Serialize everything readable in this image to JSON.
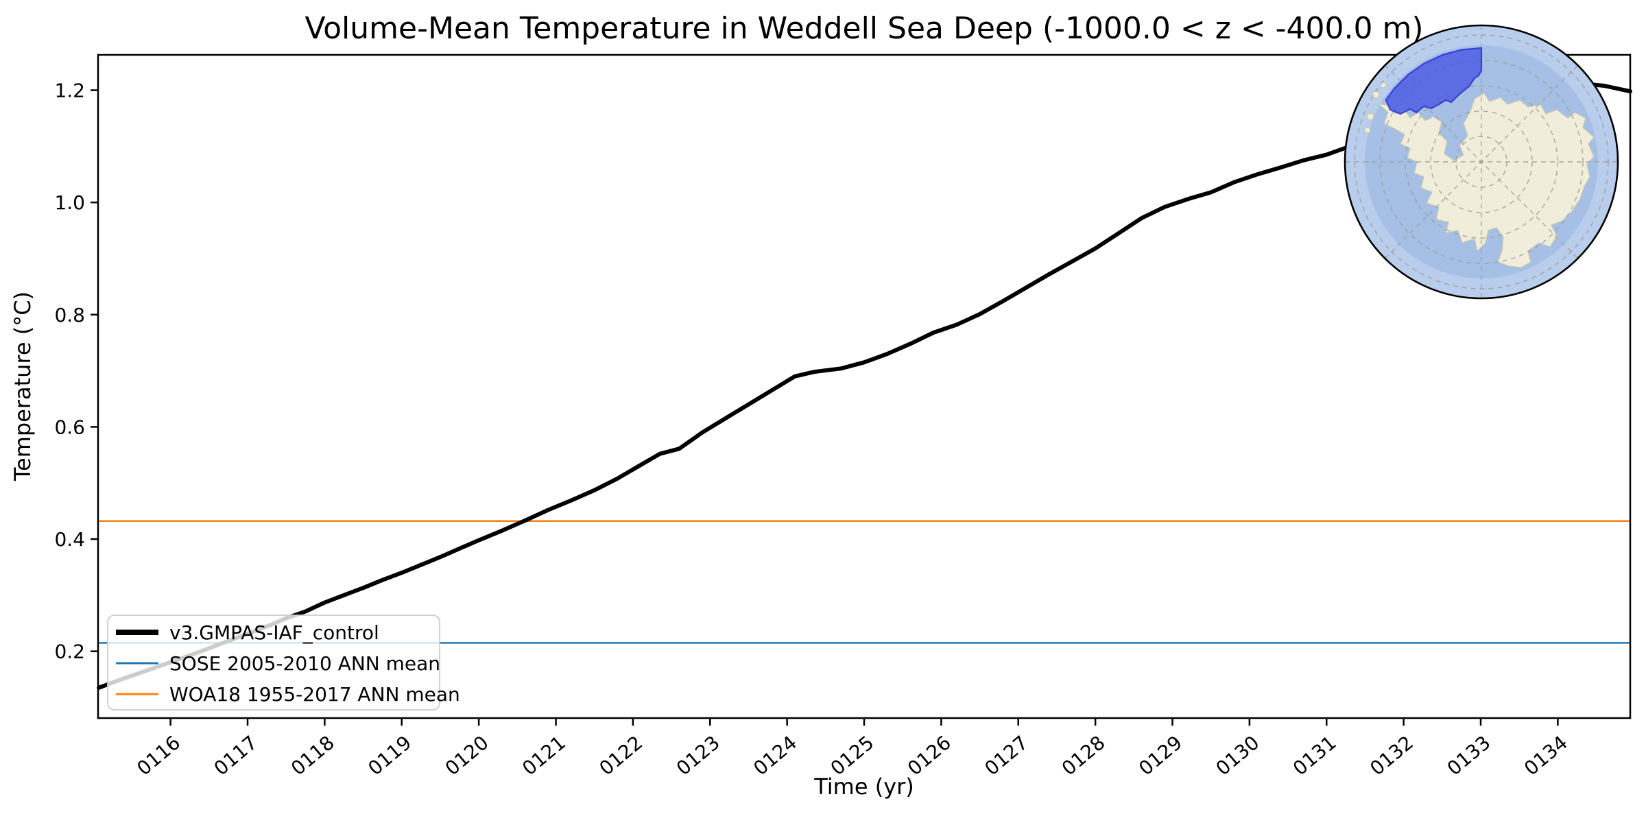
{
  "title": "Volume-Mean Temperature in Weddell Sea Deep (-1000.0 < z < -400.0 m)",
  "axes": {
    "xlabel": "Time (yr)",
    "ylabel": "Temperature (°C)"
  },
  "legend": {
    "position": "lower left"
  },
  "colors": {
    "series-black": "#000000",
    "sose-blue": "#1f77b4",
    "woa-orange": "#ff7f0e",
    "ocean-outer": "#b9cdec",
    "ocean-inner": "#a6c0e5",
    "land": "#f0eedb",
    "land-edge": "#c9c5b0",
    "region-fill": "#4855e2",
    "region-edge": "#3a3fd8",
    "graticule": "#9a9a9a",
    "legend-border": "#cccccc"
  },
  "inset_map": {
    "description": "South polar stereographic locator map of Antarctica",
    "highlighted_region": "Weddell Sea Deep"
  },
  "chart_data": {
    "type": "line",
    "title": "Volume-Mean Temperature in Weddell Sea Deep (-1000.0 < z < -400.0 m)",
    "xlabel": "Time (yr)",
    "ylabel": "Temperature (°C)",
    "xlim": [
      115.06,
      134.94
    ],
    "ylim": [
      0.081,
      1.263
    ],
    "grid": false,
    "legend_position": "lower left",
    "x_ticks": [
      {
        "value": 116,
        "label": "0116"
      },
      {
        "value": 117,
        "label": "0117"
      },
      {
        "value": 118,
        "label": "0118"
      },
      {
        "value": 119,
        "label": "0119"
      },
      {
        "value": 120,
        "label": "0120"
      },
      {
        "value": 121,
        "label": "0121"
      },
      {
        "value": 122,
        "label": "0122"
      },
      {
        "value": 123,
        "label": "0123"
      },
      {
        "value": 124,
        "label": "0124"
      },
      {
        "value": 125,
        "label": "0125"
      },
      {
        "value": 126,
        "label": "0126"
      },
      {
        "value": 127,
        "label": "0127"
      },
      {
        "value": 128,
        "label": "0128"
      },
      {
        "value": 129,
        "label": "0129"
      },
      {
        "value": 130,
        "label": "0130"
      },
      {
        "value": 131,
        "label": "0131"
      },
      {
        "value": 132,
        "label": "0132"
      },
      {
        "value": 133,
        "label": "0133"
      },
      {
        "value": 134,
        "label": "0134"
      }
    ],
    "y_ticks": [
      {
        "value": 0.2,
        "label": "0.2"
      },
      {
        "value": 0.4,
        "label": "0.4"
      },
      {
        "value": 0.6,
        "label": "0.6"
      },
      {
        "value": 0.8,
        "label": "0.8"
      },
      {
        "value": 1.0,
        "label": "1.0"
      },
      {
        "value": 1.2,
        "label": "1.2"
      }
    ],
    "series": [
      {
        "name": "v3.GMPAS-IAF_control",
        "type": "line",
        "color_key": "series-black",
        "x": [
          115.07,
          115.3,
          115.55,
          115.8,
          116.05,
          116.3,
          116.55,
          116.8,
          117.05,
          117.3,
          117.5,
          117.75,
          118.0,
          118.25,
          118.5,
          118.75,
          119.0,
          119.25,
          119.5,
          119.75,
          120.0,
          120.3,
          120.6,
          120.9,
          121.2,
          121.5,
          121.8,
          122.1,
          122.35,
          122.6,
          122.9,
          123.2,
          123.5,
          123.8,
          124.1,
          124.35,
          124.7,
          125.0,
          125.3,
          125.6,
          125.9,
          126.2,
          126.5,
          126.8,
          127.1,
          127.4,
          127.7,
          128.0,
          128.3,
          128.6,
          128.9,
          129.2,
          129.5,
          129.8,
          130.1,
          130.4,
          130.7,
          131.0,
          131.3,
          131.6,
          131.9,
          132.3,
          132.7,
          133.1,
          133.5,
          133.9,
          134.3,
          134.6,
          134.94
        ],
        "y": [
          0.135,
          0.147,
          0.159,
          0.171,
          0.183,
          0.195,
          0.208,
          0.221,
          0.234,
          0.247,
          0.259,
          0.271,
          0.287,
          0.3,
          0.313,
          0.327,
          0.34,
          0.354,
          0.368,
          0.383,
          0.398,
          0.415,
          0.433,
          0.452,
          0.469,
          0.487,
          0.508,
          0.532,
          0.552,
          0.561,
          0.59,
          0.615,
          0.64,
          0.665,
          0.69,
          0.698,
          0.704,
          0.715,
          0.73,
          0.748,
          0.768,
          0.782,
          0.801,
          0.824,
          0.848,
          0.872,
          0.895,
          0.918,
          0.945,
          0.972,
          0.992,
          1.006,
          1.018,
          1.036,
          1.05,
          1.062,
          1.075,
          1.085,
          1.1,
          1.112,
          1.126,
          1.148,
          1.166,
          1.183,
          1.196,
          1.206,
          1.212,
          1.208,
          1.198
        ]
      },
      {
        "name": "SOSE 2005-2010 ANN mean",
        "type": "hline",
        "value": 0.215,
        "color_key": "sose-blue",
        "dom_id": "ref-sose"
      },
      {
        "name": "WOA18 1955-2017 ANN mean",
        "type": "hline",
        "value": 0.432,
        "color_key": "woa-orange",
        "dom_id": "ref-woa"
      }
    ]
  }
}
